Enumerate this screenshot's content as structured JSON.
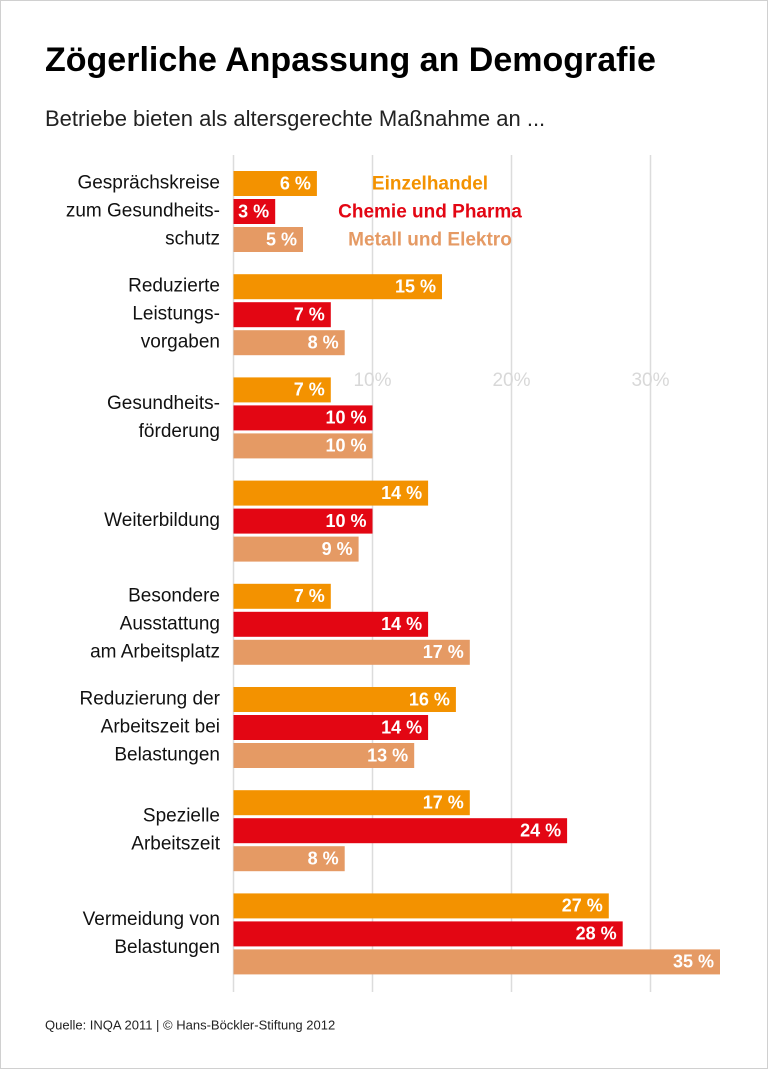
{
  "chart_data": {
    "type": "hbar",
    "title": "Zögerliche Anpassung an Demografie",
    "subtitle": "Betriebe bieten als altersgerechte Maßnahme an ...",
    "source": "Quelle: INQA 2011 | © Hans-Böckler-Stiftung 2012",
    "categories": [
      [
        "Gesprächskreise",
        "zum Gesundheits-",
        "schutz"
      ],
      [
        "Reduzierte",
        "Leistungs-",
        "vorgaben"
      ],
      [
        "Gesundheits-",
        "förderung"
      ],
      [
        "Weiterbildung"
      ],
      [
        "Besondere",
        "Ausstattung",
        "am Arbeitsplatz"
      ],
      [
        "Reduzierung der",
        "Arbeitszeit bei",
        "Belastungen"
      ],
      [
        "Spezielle",
        "Arbeitszeit"
      ],
      [
        "Vermeidung von",
        "Belastungen"
      ]
    ],
    "series": [
      {
        "name": "Einzelhandel",
        "color": "#f39200",
        "values": [
          6,
          15,
          7,
          14,
          7,
          16,
          17,
          27
        ],
        "value_labels": [
          "6 %",
          "15 %",
          "7 %",
          "14 %",
          "7 %",
          "16 %",
          "17 %",
          "27 %"
        ]
      },
      {
        "name": "Chemie und Pharma",
        "color": "#e30613",
        "values": [
          3,
          7,
          10,
          10,
          14,
          14,
          24,
          28
        ],
        "value_labels": [
          "3 %",
          "7 %",
          "10 %",
          "10 %",
          "14 %",
          "14 %",
          "24 %",
          "28 %"
        ]
      },
      {
        "name": "Metall und Elektro",
        "color": "#e59a64",
        "values": [
          5,
          8,
          10,
          9,
          17,
          13,
          8,
          35
        ],
        "value_labels": [
          "5 %",
          "8 %",
          "10 %",
          "9 %",
          "17 %",
          "13 %",
          "8 %",
          "35 %"
        ]
      }
    ],
    "xlim": [
      0,
      35
    ],
    "xticks": [
      {
        "value": 10,
        "label": "10%"
      },
      {
        "value": 20,
        "label": "20%"
      },
      {
        "value": 30,
        "label": "30%"
      }
    ],
    "grid": true
  }
}
